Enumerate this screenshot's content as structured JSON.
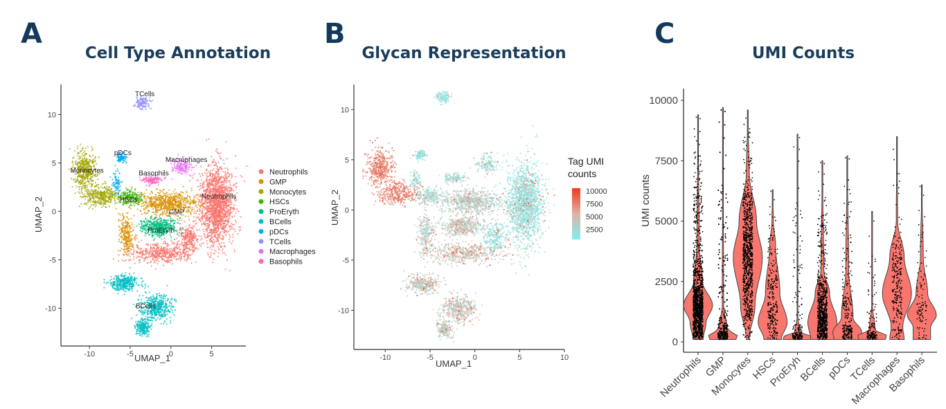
{
  "panels": {
    "a_letter": "A",
    "b_letter": "B",
    "c_letter": "C"
  },
  "chart_data": [
    {
      "type": "scatter",
      "title": "Cell Type Annotation",
      "xlabel": "UMAP_1",
      "ylabel": "UMAP_2",
      "xlim": [
        -13.5,
        9.2
      ],
      "ylim": [
        -13.9,
        13.1
      ],
      "xticks": [
        "-10",
        "-5",
        "0",
        "5"
      ],
      "yticks": [
        "10",
        "5",
        "0",
        "-5",
        "-10"
      ],
      "grid": false,
      "legend_placement": "right",
      "legend": [
        "Neutrophils",
        "GMP",
        "Monocytes",
        "HSCs",
        "ProEryth",
        "BCells",
        "pDCs",
        "TCells",
        "Macrophages",
        "Basophils"
      ],
      "colors": [
        "#F8766D",
        "#D89000",
        "#A3A500",
        "#39B600",
        "#00BF7D",
        "#00BFC4",
        "#00B0F6",
        "#9590FF",
        "#E76BF3",
        "#FF62BC"
      ],
      "clusters": [
        {
          "name": "Neutrophils",
          "label_at": [
            5.9,
            1.3
          ],
          "blobs": [
            [
              5.6,
              0.6,
              1.3,
              2.7,
              1700
            ],
            [
              -1.2,
              -4.3,
              2.6,
              0.7,
              500
            ],
            [
              2.2,
              -2.8,
              0.8,
              1.0,
              250
            ]
          ]
        },
        {
          "name": "GMP",
          "label_at": [
            0.7,
            -0.3
          ],
          "blobs": [
            [
              -0.3,
              0.8,
              2.4,
              0.8,
              700
            ],
            [
              -5.4,
              -2.4,
              0.6,
              1.3,
              250
            ]
          ]
        },
        {
          "name": "Monocytes",
          "label_at": [
            -10.3,
            4.0
          ],
          "blobs": [
            [
              -10.6,
              4.2,
              0.9,
              1.2,
              450
            ],
            [
              -8.6,
              1.6,
              1.5,
              0.7,
              350
            ]
          ]
        },
        {
          "name": "HSCs",
          "label_at": [
            -5.2,
            1.0
          ],
          "blobs": [
            [
              -5.0,
              1.4,
              1.0,
              0.5,
              200
            ]
          ]
        },
        {
          "name": "ProEryth",
          "label_at": [
            -1.2,
            -2.2
          ],
          "blobs": [
            [
              -1.5,
              -1.6,
              1.4,
              0.6,
              450
            ]
          ]
        },
        {
          "name": "BCells",
          "label_at": [
            -3.1,
            -10.0
          ],
          "blobs": [
            [
              -5.8,
              -7.4,
              1.2,
              0.55,
              350
            ],
            [
              -1.8,
              -9.9,
              1.3,
              0.9,
              450
            ],
            [
              -3.4,
              -11.9,
              0.6,
              0.6,
              200
            ]
          ]
        },
        {
          "name": "pDCs",
          "label_at": [
            -5.9,
            5.8
          ],
          "blobs": [
            [
              -6.1,
              5.5,
              0.4,
              0.3,
              100
            ],
            [
              -6.6,
              3.0,
              0.4,
              0.8,
              80
            ]
          ]
        },
        {
          "name": "TCells",
          "label_at": [
            -3.2,
            11.9
          ],
          "blobs": [
            [
              -3.5,
              11.2,
              0.55,
              0.4,
              120
            ]
          ]
        },
        {
          "name": "Macrophages",
          "label_at": [
            1.9,
            5.1
          ],
          "blobs": [
            [
              1.3,
              4.6,
              0.8,
              0.6,
              150
            ]
          ]
        },
        {
          "name": "Basophils",
          "label_at": [
            -2.1,
            3.7
          ],
          "blobs": [
            [
              -2.3,
              3.2,
              0.8,
              0.3,
              120
            ]
          ]
        }
      ]
    },
    {
      "type": "scatter",
      "title": "Glycan Representation",
      "xlabel": "UMAP_1",
      "ylabel": "UMAP_2",
      "xlim": [
        -13.5,
        10
      ],
      "ylim": [
        -13.9,
        12.5
      ],
      "xticks": [
        "-10",
        "-5",
        "0",
        "5",
        "10"
      ],
      "yticks": [
        "10",
        "5",
        "0",
        "-5",
        "-10"
      ],
      "grid": false,
      "colorbar": {
        "title_line1": "Tag UMI",
        "title_line2": "counts",
        "ticks": [
          "10000",
          "7500",
          "5000",
          "2500"
        ],
        "low_color": "#7FEFEF",
        "high_color": "#F03A20",
        "range": [
          0,
          10000
        ]
      }
    },
    {
      "type": "violin",
      "title": "UMI Counts",
      "xlabel": "",
      "ylabel": "UMI counts",
      "ylim": [
        -500,
        10500
      ],
      "yticks": [
        "0",
        "2500",
        "5000",
        "7500",
        "10000"
      ],
      "fill_color": "#F8766D",
      "categories": [
        "Neutrophils",
        "GMP",
        "Monocytes",
        "HSCs",
        "ProEryh",
        "BCells",
        "pDCs",
        "TCells",
        "Macrophages",
        "Basophils"
      ],
      "max": [
        9400,
        9700,
        9600,
        6300,
        8600,
        7500,
        7700,
        5400,
        8500,
        6500
      ],
      "density": [
        [
          [
            100,
            0.35
          ],
          [
            800,
            0.55
          ],
          [
            1500,
            1
          ],
          [
            2500,
            0.3
          ],
          [
            4000,
            0.08
          ],
          [
            9400,
            0
          ]
        ],
        [
          [
            100,
            0.9
          ],
          [
            300,
            1
          ],
          [
            500,
            0.3
          ],
          [
            1500,
            0.05
          ],
          [
            9700,
            0
          ]
        ],
        [
          [
            100,
            0.1
          ],
          [
            1500,
            0.5
          ],
          [
            3500,
            1
          ],
          [
            5000,
            0.6
          ],
          [
            7000,
            0.1
          ],
          [
            9600,
            0
          ]
        ],
        [
          [
            100,
            0.6
          ],
          [
            800,
            1
          ],
          [
            2000,
            0.5
          ],
          [
            4000,
            0.2
          ],
          [
            5000,
            0.05
          ],
          [
            6300,
            0
          ]
        ],
        [
          [
            100,
            1
          ],
          [
            200,
            1
          ],
          [
            400,
            0.2
          ],
          [
            1000,
            0.03
          ],
          [
            8600,
            0
          ]
        ],
        [
          [
            100,
            0.8
          ],
          [
            800,
            1
          ],
          [
            2000,
            0.5
          ],
          [
            3000,
            0.1
          ],
          [
            7500,
            0
          ]
        ],
        [
          [
            100,
            0.9
          ],
          [
            400,
            1
          ],
          [
            1000,
            0.4
          ],
          [
            3000,
            0.1
          ],
          [
            7700,
            0
          ]
        ],
        [
          [
            100,
            0.9
          ],
          [
            250,
            1
          ],
          [
            500,
            0.2
          ],
          [
            1500,
            0.03
          ],
          [
            5400,
            0
          ]
        ],
        [
          [
            100,
            0.5
          ],
          [
            600,
            0.4
          ],
          [
            2000,
            1
          ],
          [
            3500,
            0.5
          ],
          [
            5000,
            0.05
          ],
          [
            8500,
            0
          ]
        ],
        [
          [
            100,
            0.6
          ],
          [
            600,
            0.6
          ],
          [
            1100,
            1
          ],
          [
            2000,
            0.4
          ],
          [
            3500,
            0.1
          ],
          [
            6500,
            0
          ]
        ]
      ],
      "cells": [
        1500,
        900,
        900,
        250,
        180,
        800,
        250,
        150,
        250,
        100
      ]
    }
  ]
}
